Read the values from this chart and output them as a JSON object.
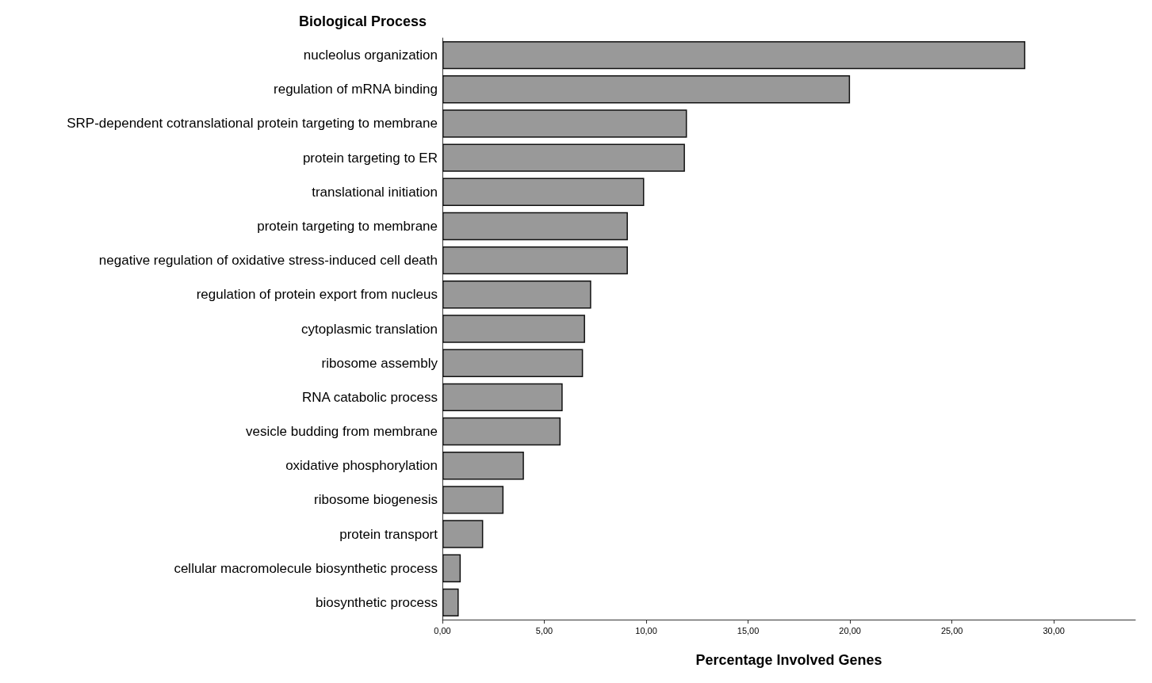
{
  "chart_data": {
    "type": "bar",
    "orientation": "horizontal",
    "ylabel": "Biological Process",
    "xlabel": "Percentage Involved Genes",
    "categories": [
      "nucleolus organization",
      "regulation of mRNA binding",
      "SRP-dependent cotranslational protein targeting to membrane",
      "protein targeting to ER",
      "translational initiation",
      "protein targeting to membrane",
      "negative regulation of oxidative stress-induced cell death",
      "regulation of protein export from nucleus",
      "cytoplasmic translation",
      "ribosome assembly",
      "RNA catabolic process",
      "vesicle budding from membrane",
      "oxidative phosphorylation",
      "ribosome biogenesis",
      "protein transport",
      "cellular macromolecule biosynthetic process",
      "biosynthetic process"
    ],
    "values": [
      28.6,
      20.0,
      12.0,
      11.9,
      9.9,
      9.1,
      9.1,
      7.3,
      7.0,
      6.9,
      5.9,
      5.8,
      4.0,
      3.0,
      2.0,
      0.9,
      0.8
    ],
    "color": "#999999",
    "xlim": [
      0,
      34
    ],
    "xticks": [
      {
        "value": 0,
        "label": "0,00"
      },
      {
        "value": 5,
        "label": "5,00"
      },
      {
        "value": 10,
        "label": "10,00"
      },
      {
        "value": 15,
        "label": "15,00"
      },
      {
        "value": 20,
        "label": "20,00"
      },
      {
        "value": 25,
        "label": "25,00"
      },
      {
        "value": 30,
        "label": "30,00"
      }
    ],
    "grid": false
  }
}
